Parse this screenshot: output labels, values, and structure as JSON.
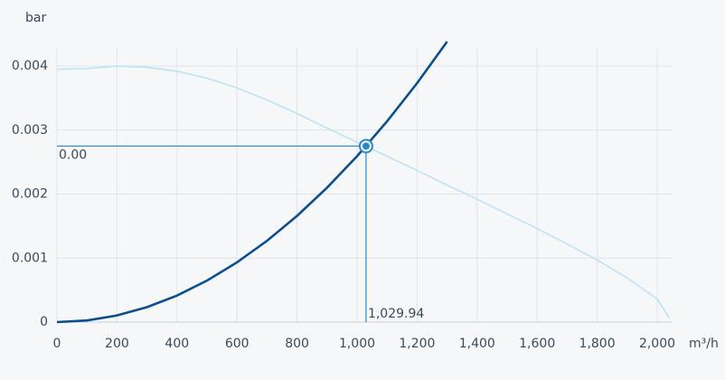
{
  "chart_data": {
    "type": "line",
    "y_axis_label": "bar",
    "x_axis_label": "m³/h",
    "xlim": [
      0,
      2050
    ],
    "ylim": [
      0,
      0.0043
    ],
    "xticks": [
      0,
      200,
      400,
      600,
      800,
      {
        "value": 1000,
        "label": "1,000"
      },
      {
        "value": 1200,
        "label": "1,200"
      },
      {
        "value": 1400,
        "label": "1,400"
      },
      {
        "value": 1600,
        "label": "1,600"
      },
      {
        "value": 1800,
        "label": "1,800"
      },
      {
        "value": 2000,
        "label": "2,000"
      }
    ],
    "yticks": [
      0,
      0.001,
      0.002,
      0.003,
      0.004
    ],
    "grid": true,
    "series": [
      {
        "color": "#bfe3f2",
        "x": [
          0,
          100,
          200,
          300,
          400,
          500,
          600,
          700,
          800,
          900,
          1000,
          1100,
          1200,
          1300,
          1400,
          1500,
          1600,
          1700,
          1800,
          1900,
          2000,
          2040
        ],
        "values": [
          0.00395,
          0.00396,
          0.004,
          0.00398,
          0.00392,
          0.00381,
          0.00366,
          0.00347,
          0.00326,
          0.00303,
          0.00281,
          0.00259,
          0.00237,
          0.00214,
          0.00192,
          0.00169,
          0.00146,
          0.00122,
          0.00097,
          0.00069,
          0.00036,
          7e-05
        ]
      },
      {
        "color": "#0d4f8b",
        "x": [
          0,
          100,
          200,
          300,
          400,
          500,
          600,
          700,
          800,
          900,
          1000,
          1100,
          1200,
          1300
        ],
        "values": [
          0,
          2.59e-05,
          0.0001037,
          0.0002333,
          0.0004148,
          0.0006481,
          0.0009333,
          0.0012703,
          0.0016592,
          0.0020999,
          0.0025925,
          0.0031369,
          0.0037332,
          0.0043813
        ]
      }
    ],
    "operating_point": {
      "x": 1029.94,
      "y": 0.00275,
      "x_label": "1,029.94",
      "y_label": "0.00",
      "color": "#2a8ac8"
    }
  }
}
